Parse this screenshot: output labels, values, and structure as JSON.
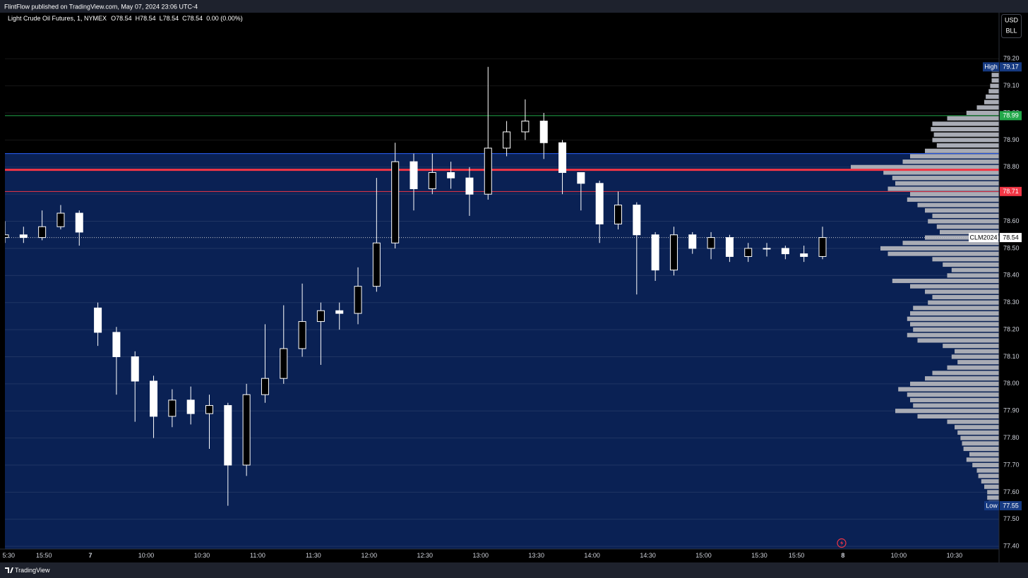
{
  "header": {
    "publisher": "FlintFlow published on TradingView.com, May 07, 2024 23:06 UTC-4"
  },
  "chart_data": {
    "type": "candlestick",
    "title": "Light Crude Oil Futures, 1, NYMEX",
    "ohlc_labels": {
      "open": "O78.54",
      "high": "H78.54",
      "low": "L78.54",
      "close": "C78.54",
      "change": "0.00 (0.00%)"
    },
    "currency": "USD",
    "unit": "BLL",
    "x": [
      0,
      10,
      20,
      30,
      40,
      50,
      60,
      70,
      80,
      90,
      100,
      110,
      120,
      130,
      140,
      150,
      160,
      170,
      180,
      190,
      200,
      210,
      220,
      230,
      240,
      250,
      260,
      270,
      280,
      290,
      300,
      310,
      320,
      330,
      340,
      350,
      360,
      370,
      380,
      390,
      400,
      410,
      420,
      430,
      440
    ],
    "open": [
      78.54,
      78.55,
      78.54,
      78.58,
      78.63,
      78.28,
      78.19,
      78.1,
      78.01,
      77.88,
      77.94,
      77.89,
      77.92,
      77.7,
      77.96,
      78.02,
      78.13,
      78.23,
      78.27,
      78.26,
      78.36,
      78.52,
      78.82,
      78.72,
      78.78,
      78.76,
      78.7,
      78.87,
      78.93,
      78.97,
      78.89,
      78.78,
      78.74,
      78.59,
      78.66,
      78.55,
      78.42,
      78.55,
      78.5,
      78.54,
      78.47,
      78.5,
      78.5,
      78.48,
      78.47
    ],
    "high": [
      78.6,
      78.58,
      78.64,
      78.66,
      78.64,
      78.3,
      78.21,
      78.12,
      78.03,
      77.98,
      77.99,
      77.96,
      77.93,
      78.0,
      78.22,
      78.29,
      78.37,
      78.3,
      78.3,
      78.43,
      78.76,
      78.89,
      78.85,
      78.85,
      78.82,
      78.8,
      79.17,
      78.97,
      79.05,
      79.0,
      78.9,
      78.78,
      78.75,
      78.71,
      78.67,
      78.56,
      78.58,
      78.56,
      78.56,
      78.55,
      78.52,
      78.52,
      78.51,
      78.51,
      78.58
    ],
    "low": [
      78.52,
      78.52,
      78.53,
      78.57,
      78.51,
      78.14,
      77.96,
      77.86,
      77.8,
      77.84,
      77.85,
      77.76,
      77.55,
      77.66,
      77.93,
      78.0,
      78.1,
      78.07,
      78.2,
      78.22,
      78.34,
      78.5,
      78.64,
      78.7,
      78.72,
      78.62,
      78.68,
      78.84,
      78.9,
      78.83,
      78.7,
      78.64,
      78.52,
      78.57,
      78.33,
      78.38,
      78.4,
      78.48,
      78.46,
      78.45,
      78.45,
      78.47,
      78.46,
      78.45,
      78.46
    ],
    "close": [
      78.55,
      78.54,
      78.58,
      78.63,
      78.56,
      78.19,
      78.1,
      78.01,
      77.88,
      77.94,
      77.89,
      77.92,
      77.7,
      77.96,
      78.02,
      78.13,
      78.23,
      78.27,
      78.26,
      78.36,
      78.52,
      78.82,
      78.72,
      78.78,
      78.76,
      78.7,
      78.87,
      78.93,
      78.97,
      78.89,
      78.78,
      78.74,
      78.59,
      78.66,
      78.55,
      78.42,
      78.55,
      78.5,
      78.54,
      78.47,
      78.5,
      78.5,
      78.48,
      78.47,
      78.54
    ],
    "up_color": "#ffffff",
    "down_color": "#ffffff",
    "xlim": [
      0,
      535
    ],
    "xticks": [
      {
        "value": 2,
        "label": "5:30"
      },
      {
        "value": 21,
        "label": "15:50"
      },
      {
        "value": 46,
        "label": "7"
      },
      {
        "value": 76,
        "label": "10:00"
      },
      {
        "value": 106,
        "label": "10:30"
      },
      {
        "value": 136,
        "label": "11:00"
      },
      {
        "value": 166,
        "label": "11:30"
      },
      {
        "value": 196,
        "label": "12:00"
      },
      {
        "value": 226,
        "label": "12:30"
      },
      {
        "value": 256,
        "label": "13:00"
      },
      {
        "value": 286,
        "label": "13:30"
      },
      {
        "value": 316,
        "label": "14:00"
      },
      {
        "value": 346,
        "label": "14:30"
      },
      {
        "value": 376,
        "label": "15:00"
      },
      {
        "value": 406,
        "label": "15:30"
      },
      {
        "value": 426,
        "label": "15:50"
      },
      {
        "value": 451,
        "label": "8"
      },
      {
        "value": 481,
        "label": "10:00"
      },
      {
        "value": 511,
        "label": "10:30"
      }
    ],
    "ylim": [
      77.39,
      79.37
    ],
    "yticks": [
      {
        "value": 79.2,
        "label": "79.20"
      },
      {
        "value": 79.1,
        "label": "79.10"
      },
      {
        "value": 79.0,
        "label": "79.00"
      },
      {
        "value": 78.9,
        "label": "78.90"
      },
      {
        "value": 78.8,
        "label": "78.80"
      },
      {
        "value": 78.7,
        "label": "78.70"
      },
      {
        "value": 78.6,
        "label": "78.60"
      },
      {
        "value": 78.5,
        "label": "78.50"
      },
      {
        "value": 78.4,
        "label": "78.40"
      },
      {
        "value": 78.3,
        "label": "78.30"
      },
      {
        "value": 78.2,
        "label": "78.20"
      },
      {
        "value": 78.1,
        "label": "78.10"
      },
      {
        "value": 78.0,
        "label": "78.00"
      },
      {
        "value": 77.9,
        "label": "77.90"
      },
      {
        "value": 77.8,
        "label": "77.80"
      },
      {
        "value": 77.7,
        "label": "77.70"
      },
      {
        "value": 77.6,
        "label": "77.60"
      },
      {
        "value": 77.5,
        "label": "77.50"
      },
      {
        "value": 77.4,
        "label": "77.40"
      }
    ],
    "grid": true,
    "zone": {
      "top": 78.85,
      "color": "#0a2154",
      "edge_color": "#2962ff"
    },
    "levels": [
      {
        "value": 78.99,
        "color": "#22a84a",
        "width": 1,
        "label_shown": true
      },
      {
        "value": 78.79,
        "color": "#f23645",
        "width": 3,
        "label_shown": false
      },
      {
        "value": 78.71,
        "color": "#f23645",
        "width": 1,
        "label_shown": true
      }
    ],
    "last_price": {
      "symbol": "CLM2024",
      "value": 78.54
    },
    "high_marker": {
      "label": "High",
      "value": 79.17,
      "color": "#163a82"
    },
    "low_marker": {
      "label": "Low",
      "value": 77.55,
      "color": "#163a82"
    },
    "volume_profile": {
      "color": "#a9acb5",
      "prices": [
        79.16,
        79.14,
        79.12,
        79.1,
        79.08,
        79.06,
        79.04,
        79.02,
        79.0,
        78.98,
        78.96,
        78.94,
        78.92,
        78.9,
        78.88,
        78.86,
        78.84,
        78.82,
        78.8,
        78.78,
        78.76,
        78.74,
        78.72,
        78.7,
        78.68,
        78.66,
        78.64,
        78.62,
        78.6,
        78.58,
        78.56,
        78.54,
        78.52,
        78.5,
        78.48,
        78.46,
        78.44,
        78.42,
        78.4,
        78.38,
        78.36,
        78.34,
        78.32,
        78.3,
        78.28,
        78.26,
        78.24,
        78.22,
        78.2,
        78.18,
        78.16,
        78.14,
        78.12,
        78.1,
        78.08,
        78.06,
        78.04,
        78.02,
        78.0,
        77.98,
        77.96,
        77.94,
        77.92,
        77.9,
        77.88,
        77.86,
        77.84,
        77.82,
        77.8,
        77.78,
        77.76,
        77.74,
        77.72,
        77.7,
        77.68,
        77.66,
        77.64,
        77.62,
        77.6,
        77.58,
        77.56
      ],
      "values": [
        5,
        5,
        5,
        6,
        7,
        9,
        10,
        15,
        22,
        35,
        45,
        46,
        44,
        45,
        42,
        50,
        60,
        65,
        100,
        78,
        72,
        70,
        75,
        60,
        62,
        55,
        50,
        45,
        48,
        42,
        40,
        50,
        65,
        80,
        75,
        45,
        38,
        32,
        35,
        72,
        60,
        50,
        45,
        48,
        58,
        60,
        62,
        60,
        58,
        62,
        55,
        38,
        30,
        32,
        28,
        35,
        45,
        50,
        60,
        68,
        62,
        60,
        58,
        70,
        55,
        35,
        30,
        28,
        26,
        25,
        24,
        20,
        22,
        18,
        15,
        14,
        12,
        10,
        8,
        8,
        7
      ]
    }
  },
  "footer": {
    "brand": "TradingView"
  }
}
